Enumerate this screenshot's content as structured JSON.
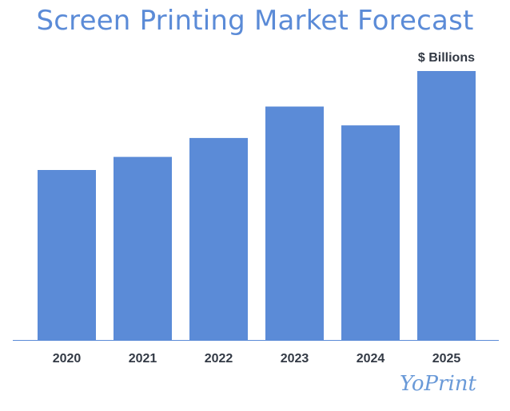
{
  "page": {
    "title": "Screen Printing Market Forecast",
    "unit_label": "$ Billions",
    "brand": "YoPrint"
  },
  "chart_data": {
    "type": "bar",
    "title": "Screen Printing Market Forecast",
    "xlabel": "",
    "ylabel": "",
    "unit": "$ Billions",
    "categories": [
      "2020",
      "2021",
      "2022",
      "2023",
      "2024",
      "2025"
    ],
    "values": [
      2.97,
      3.2,
      3.53,
      4.08,
      3.75,
      4.7
    ],
    "ylim": [
      0,
      4.7
    ],
    "grid": false,
    "legend": "none",
    "colors": {
      "bar": "#5b8bd7",
      "axis": "#5b8bd7",
      "label": "#333a45"
    }
  }
}
